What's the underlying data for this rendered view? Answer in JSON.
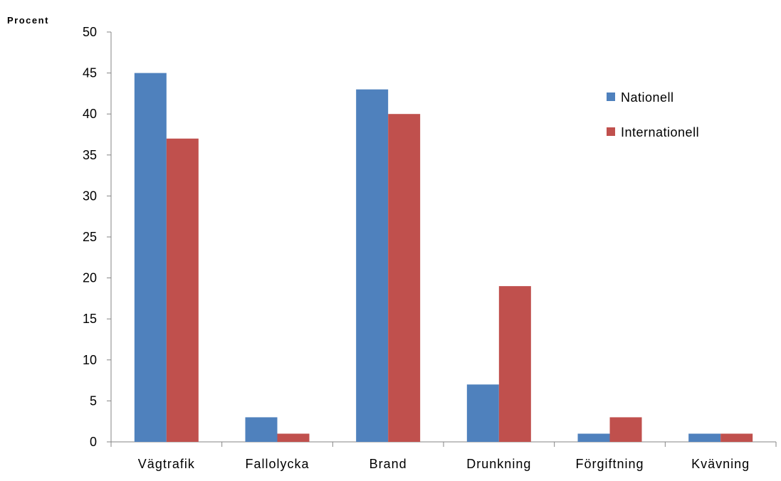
{
  "chart_data": {
    "type": "bar",
    "title": "",
    "xlabel": "",
    "ylabel": "Procent",
    "ylim": [
      0,
      50
    ],
    "yticks": [
      0,
      5,
      10,
      15,
      20,
      25,
      30,
      35,
      40,
      45,
      50
    ],
    "grid": false,
    "legend_position": "top-right",
    "categories": [
      "Vägtrafik",
      "Fallolycka",
      "Brand",
      "Drunkning",
      "Förgiftning",
      "Kvävning"
    ],
    "series": [
      {
        "name": "Nationell",
        "color": "#4F81BD",
        "values": [
          45,
          3,
          43,
          7,
          1,
          1
        ]
      },
      {
        "name": "Internationell",
        "color": "#C0504D",
        "values": [
          37,
          1,
          40,
          19,
          3,
          1
        ]
      }
    ]
  }
}
